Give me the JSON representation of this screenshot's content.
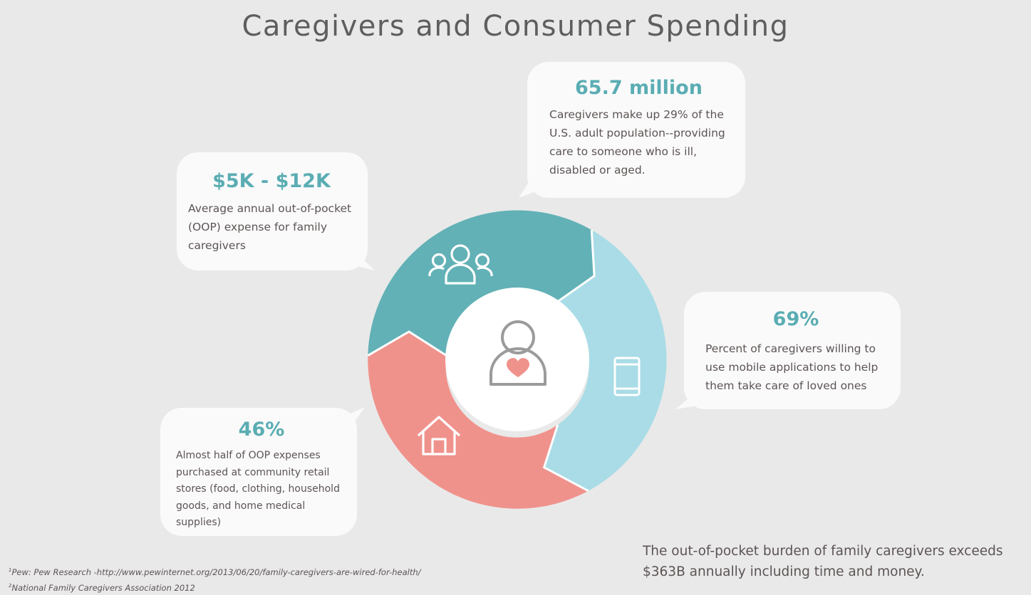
{
  "title": "Caregivers and Consumer Spending",
  "cards": {
    "population": {
      "stat": "65.7 million",
      "text": "Caregivers make up 29% of the U.S. adult population--providing care to someone who is ill, disabled or aged."
    },
    "oop": {
      "stat": "$5K - $12K",
      "text": "Average annual out-of-pocket (OOP) expense for family caregivers"
    },
    "mobile": {
      "stat": "69%",
      "text": "Percent of caregivers willing to use mobile applications to help them take care of loved ones"
    },
    "retail": {
      "stat": "46%",
      "text": "Almost half of OOP expenses purchased at community retail stores (food, clothing, household goods, and home medical supplies)"
    }
  },
  "summary": "The out-of-pocket burden of family caregivers exceeds $363B annually including time and money.",
  "footnotes": {
    "note1_marker": "1",
    "note1": "Pew: Pew Research -http://www.pewinternet.org/2013/06/20/family-caregivers-are-wired-for-health/",
    "note2_marker": "2",
    "note2": "National Family Caregivers Association 2012"
  },
  "colors": {
    "teal": "#62b1b6",
    "light_blue": "#a9dce6",
    "salmon": "#f0928c",
    "accent_text": "#5aadb3",
    "heart": "#f0928c",
    "background": "#e9e9e9"
  },
  "icons": [
    "group-icon",
    "caregiver-heart-icon",
    "mobile-phone-icon",
    "house-icon"
  ]
}
